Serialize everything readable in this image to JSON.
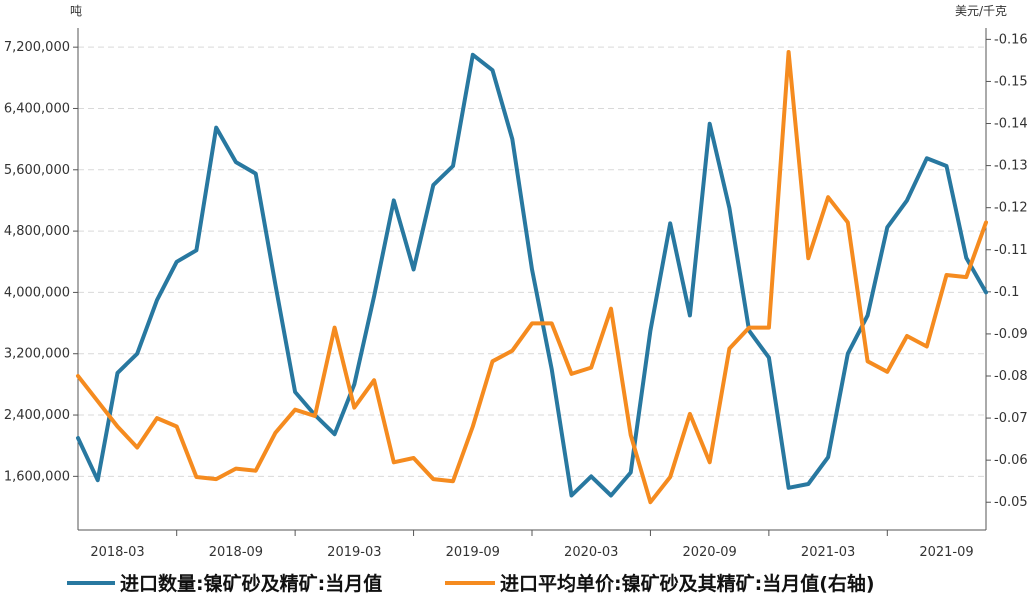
{
  "chart_data": {
    "type": "line",
    "left_unit": "吨",
    "right_unit": "美元/千克",
    "x": [
      "2018-01",
      "2018-02",
      "2018-03",
      "2018-04",
      "2018-05",
      "2018-06",
      "2018-07",
      "2018-08",
      "2018-09",
      "2018-10",
      "2018-11",
      "2018-12",
      "2019-01",
      "2019-02",
      "2019-03",
      "2019-04",
      "2019-05",
      "2019-06",
      "2019-07",
      "2019-08",
      "2019-09",
      "2019-10",
      "2019-11",
      "2019-12",
      "2020-01",
      "2020-02",
      "2020-03",
      "2020-04",
      "2020-05",
      "2020-06",
      "2020-07",
      "2020-08",
      "2020-09",
      "2020-10",
      "2020-11",
      "2020-12",
      "2021-01",
      "2021-02",
      "2021-03",
      "2021-04",
      "2021-05",
      "2021-06",
      "2021-07",
      "2021-08",
      "2021-09",
      "2021-10",
      "2021-11"
    ],
    "x_tick_labels": [
      "2018-03",
      "2018-09",
      "2019-03",
      "2019-09",
      "2020-03",
      "2020-09",
      "2021-03",
      "2021-09"
    ],
    "y_left": {
      "ticks": [
        "1,600,000",
        "2,400,000",
        "3,200,000",
        "4,000,000",
        "4,800,000",
        "5,600,000",
        "6,400,000",
        "7,200,000"
      ],
      "range": [
        900000,
        7450000
      ]
    },
    "y_right": {
      "ticks": [
        "0.05",
        "0.06",
        "0.07",
        "0.08",
        "0.09",
        "0.1",
        "0.11",
        "0.12",
        "0.13",
        "0.14",
        "0.15",
        "0.16"
      ],
      "range": [
        0.0434,
        0.1627
      ]
    },
    "series": [
      {
        "name": "进口数量:镍矿砂及精矿:当月值",
        "axis": "left",
        "color": "#2878a0",
        "values": [
          2100000,
          1550000,
          2950000,
          3200000,
          3900000,
          4400000,
          4550000,
          6150000,
          5700000,
          5550000,
          4100000,
          2700000,
          2400000,
          2150000,
          2800000,
          3950000,
          5200000,
          4300000,
          5400000,
          5650000,
          7100000,
          6900000,
          6000000,
          4300000,
          3000000,
          1350000,
          1600000,
          1350000,
          1650000,
          3500000,
          4900000,
          3700000,
          6200000,
          5100000,
          3500000,
          3150000,
          1450000,
          1500000,
          1850000,
          3200000,
          3700000,
          4850000,
          5200000,
          5750000,
          5650000,
          4450000,
          4000000
        ]
      },
      {
        "name": "进口平均单价:镍矿砂及其精矿:当月值(右轴)",
        "axis": "right",
        "color": "#f58b1f",
        "values": [
          0.08,
          0.074,
          0.068,
          0.063,
          0.07,
          0.068,
          0.056,
          0.0555,
          0.058,
          0.0575,
          0.0665,
          0.072,
          0.0705,
          0.0915,
          0.0725,
          0.079,
          0.0595,
          0.0605,
          0.0555,
          0.055,
          0.068,
          0.0835,
          0.086,
          0.0925,
          0.0925,
          0.0805,
          0.082,
          0.096,
          0.066,
          0.05,
          0.056,
          0.071,
          0.0595,
          0.0865,
          0.0915,
          0.0915,
          0.157,
          0.108,
          0.1225,
          0.1165,
          0.0835,
          0.081,
          0.0895,
          0.087,
          0.104,
          0.1035,
          0.1165
        ]
      }
    ]
  }
}
